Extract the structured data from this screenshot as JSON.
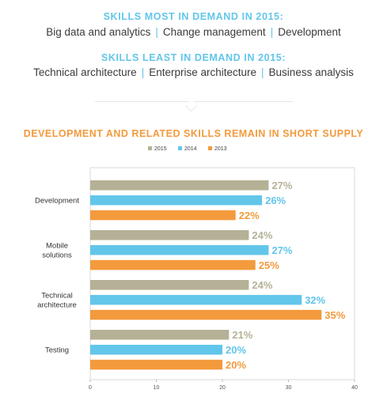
{
  "header": {
    "most_title": "SKILLS MOST IN DEMAND IN 2015:",
    "most_skills": [
      "Big data and analytics",
      "Change management",
      "Development"
    ],
    "least_title": "SKILLS LEAST IN DEMAND IN 2015:",
    "least_skills": [
      "Technical architecture",
      "Enterprise architecture",
      "Business analysis"
    ],
    "separator": "|",
    "accent_color": "#62c6ea"
  },
  "chart_data": {
    "type": "bar",
    "orientation": "horizontal",
    "title": "DEVELOPMENT AND RELATED SKILLS REMAIN IN SHORT SUPPLY",
    "title_color": "#f39a3c",
    "categories": [
      "Development",
      "Mobile\nsolutions",
      "Technical\narchitecture",
      "Testing"
    ],
    "series": [
      {
        "name": "2015",
        "color": "#b5b196",
        "values": [
          27,
          24,
          24,
          21
        ]
      },
      {
        "name": "2014",
        "color": "#62c6ea",
        "values": [
          26,
          27,
          32,
          20
        ]
      },
      {
        "name": "2013",
        "color": "#f39a3c",
        "values": [
          22,
          25,
          35,
          20
        ]
      }
    ],
    "value_suffix": "%",
    "xlim": [
      0,
      40
    ],
    "xticks": [
      0,
      10,
      20,
      30,
      40
    ],
    "legend_position": "top-center",
    "grid": false
  }
}
